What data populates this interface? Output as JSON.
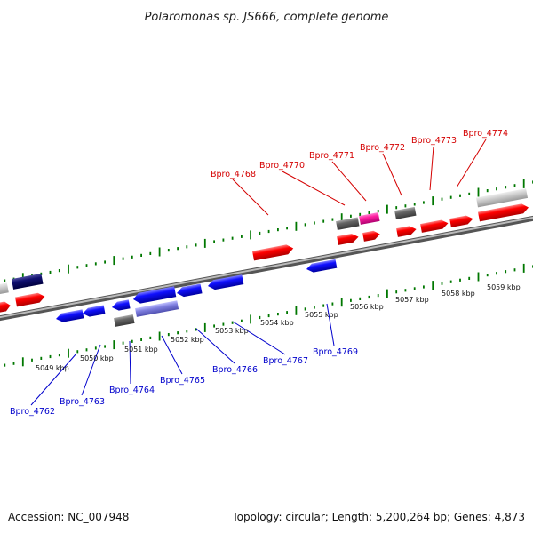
{
  "title": "Polaromonas sp. JS666, complete genome",
  "footer": {
    "accession": "Accession: NC_007948",
    "topology": "Topology: circular; Length: 5,200,264 bp; Genes: 4,873"
  },
  "scale_labels": [
    "5049 kbp",
    "5050 kbp",
    "5051 kbp",
    "5052 kbp",
    "5053 kbp",
    "5054 kbp",
    "5055 kbp",
    "5056 kbp",
    "5057 kbp",
    "5058 kbp",
    "5059 kbp"
  ],
  "gene_labels_top": [
    "Bpro_4768",
    "Bpro_4770",
    "Bpro_4771",
    "Bpro_4772",
    "Bpro_4773",
    "Bpro_4774"
  ],
  "gene_labels_bottom": [
    "Bpro_4762",
    "Bpro_4763",
    "Bpro_4764",
    "Bpro_4765",
    "Bpro_4766",
    "Bpro_4767",
    "Bpro_4769"
  ],
  "colors": {
    "forward_gene": "#ff0000",
    "reverse_gene": "#0000ff",
    "rna_gene": "#ff00aa",
    "pseudo_gene": "#666666",
    "backbone": "#888888",
    "ticks": "#007700",
    "label_top": "#d40000",
    "label_bottom": "#0000cc"
  }
}
